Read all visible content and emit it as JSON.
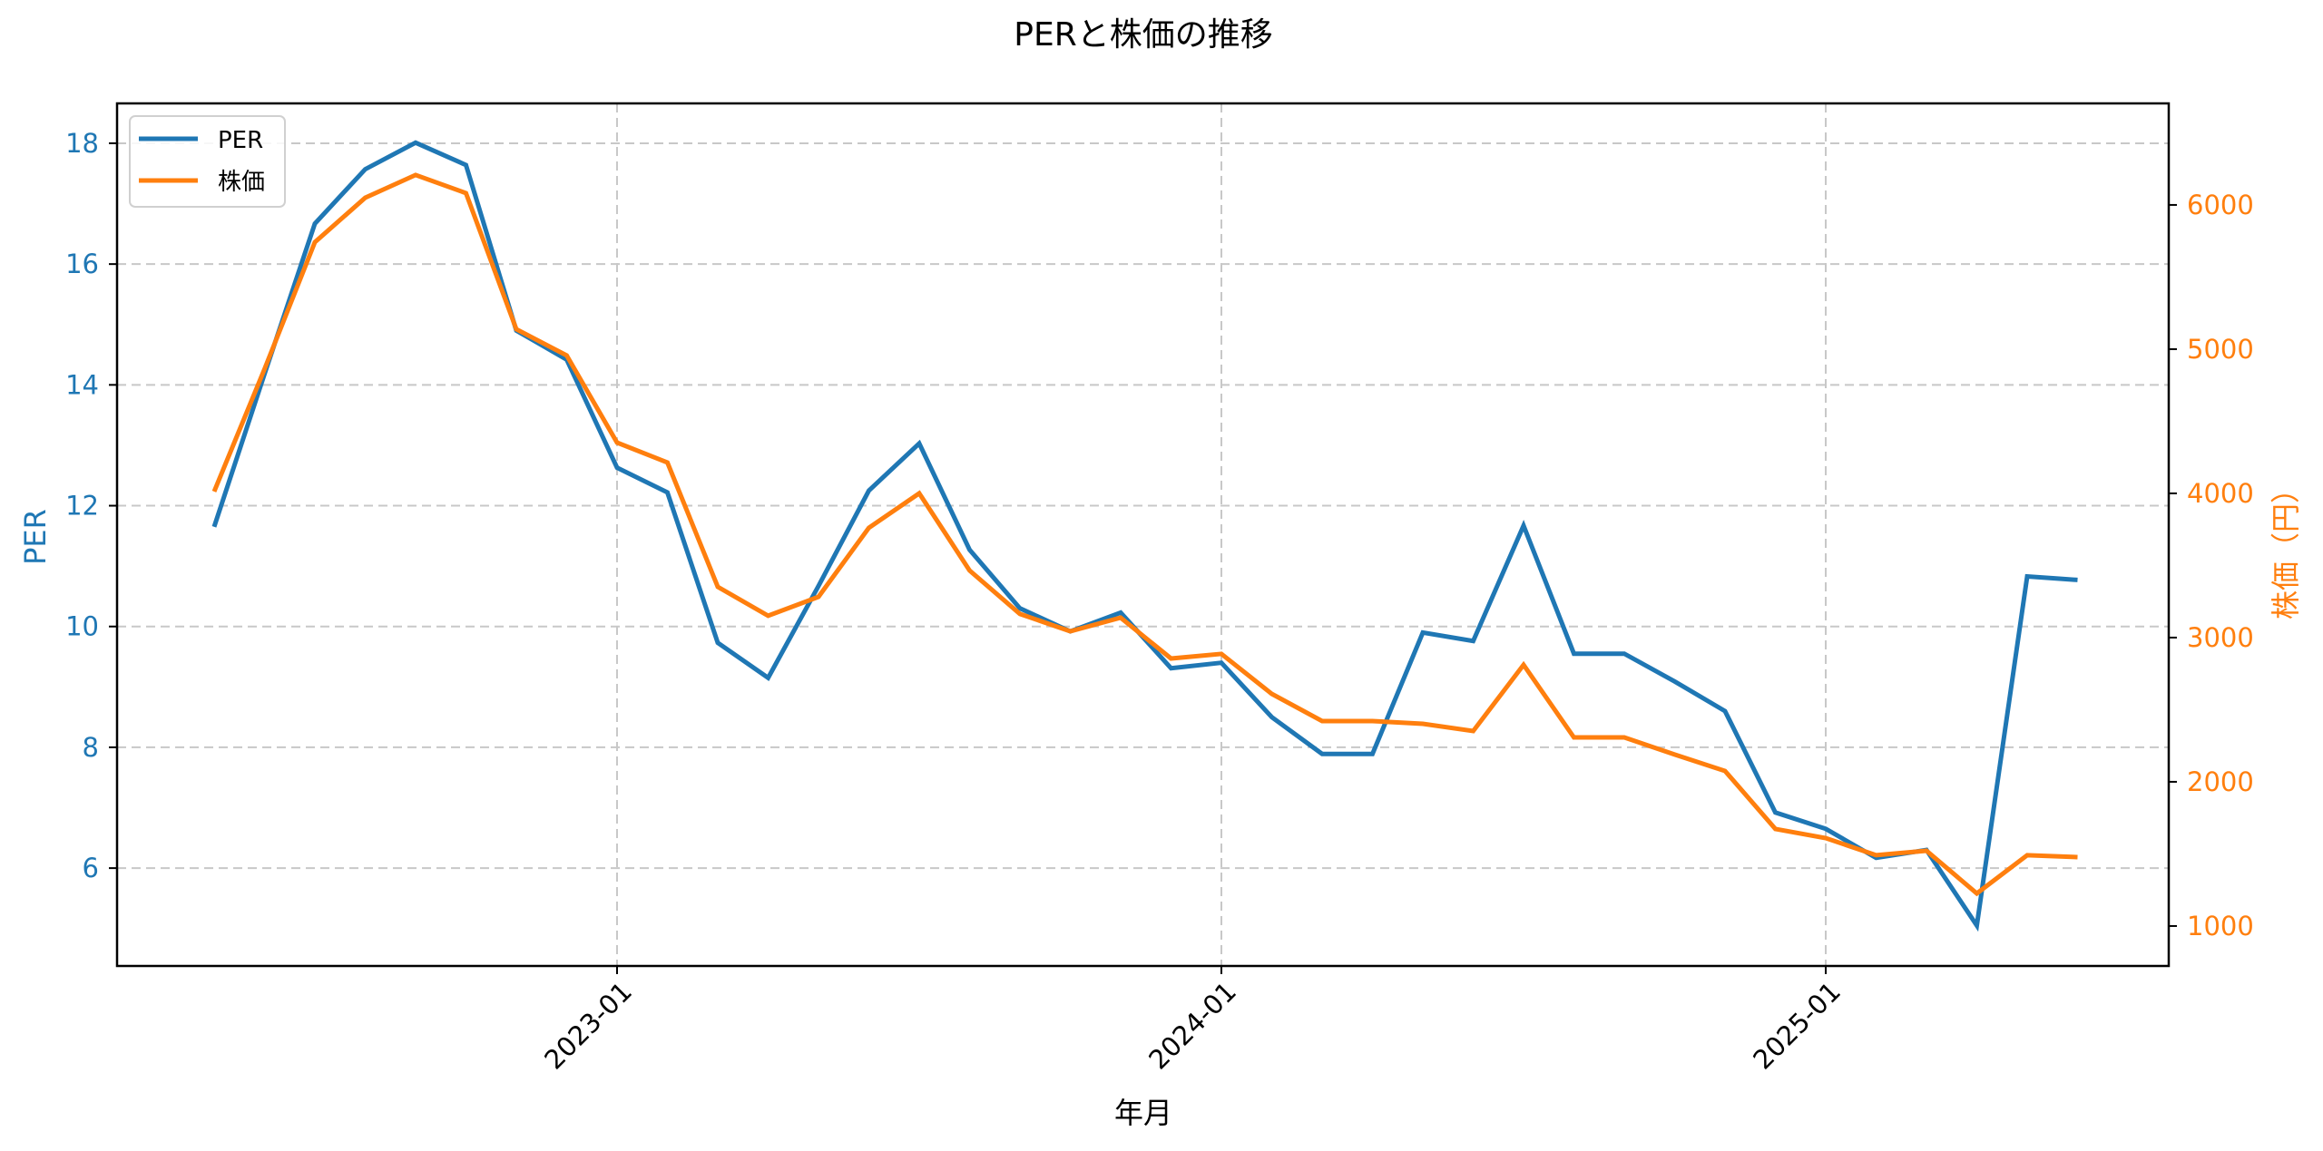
{
  "chart_data": {
    "type": "line",
    "title": "PERと株価の推移",
    "xlabel": "年月",
    "ylabel": "PER",
    "ylabel_right": "株価（円）",
    "x": [
      "2022-05",
      "2022-06",
      "2022-07",
      "2022-08",
      "2022-09",
      "2022-10",
      "2022-11",
      "2022-12",
      "2023-01",
      "2023-02",
      "2023-03",
      "2023-04",
      "2023-05",
      "2023-06",
      "2023-07",
      "2023-08",
      "2023-09",
      "2023-10",
      "2023-11",
      "2023-12",
      "2024-01",
      "2024-02",
      "2024-03",
      "2024-04",
      "2024-05",
      "2024-06",
      "2024-07",
      "2024-08",
      "2024-09",
      "2024-10",
      "2024-11",
      "2024-12",
      "2025-01",
      "2025-02",
      "2025-03",
      "2025-04",
      "2025-05",
      "2025-06"
    ],
    "xticks": [
      "2023-01",
      "2024-01",
      "2025-01"
    ],
    "series": [
      {
        "name": "PER",
        "axis": "left",
        "color": "#1f77b4",
        "values": [
          11.65,
          14.18,
          16.67,
          17.57,
          18.01,
          17.64,
          14.9,
          14.42,
          12.63,
          12.22,
          9.73,
          9.15,
          10.67,
          12.25,
          13.03,
          11.27,
          10.3,
          9.92,
          10.23,
          9.31,
          9.4,
          8.5,
          7.89,
          7.89,
          9.9,
          9.76,
          11.67,
          9.55,
          9.55,
          9.09,
          8.6,
          6.92,
          6.65,
          6.17,
          6.3,
          5.05,
          10.83,
          10.77
        ]
      },
      {
        "name": "株価",
        "axis": "right",
        "color": "#ff7f0e",
        "values": [
          4013,
          4862,
          5742,
          6050,
          6208,
          6082,
          5138,
          4956,
          4352,
          4214,
          3352,
          3151,
          3283,
          3761,
          4000,
          3465,
          3164,
          3044,
          3138,
          2855,
          2887,
          2610,
          2421,
          2421,
          2402,
          2352,
          2811,
          2308,
          2308,
          2189,
          2075,
          1673,
          1610,
          1491,
          1522,
          1226,
          1491,
          1478
        ]
      }
    ],
    "ylim": [
      4.38,
      18.66
    ],
    "yticks": [
      6,
      8,
      10,
      12,
      14,
      16,
      18
    ],
    "ylim_right": [
      723,
      6704
    ],
    "yticks_right": [
      1000,
      2000,
      3000,
      4000,
      5000,
      6000
    ],
    "grid": true,
    "legend": {
      "position": "upper left",
      "entries": [
        "PER",
        "株価"
      ]
    }
  },
  "colors": {
    "left_axis": "#1f77b4",
    "right_axis": "#ff7f0e",
    "grid": "#c8c8c8",
    "frame": "#000000"
  }
}
